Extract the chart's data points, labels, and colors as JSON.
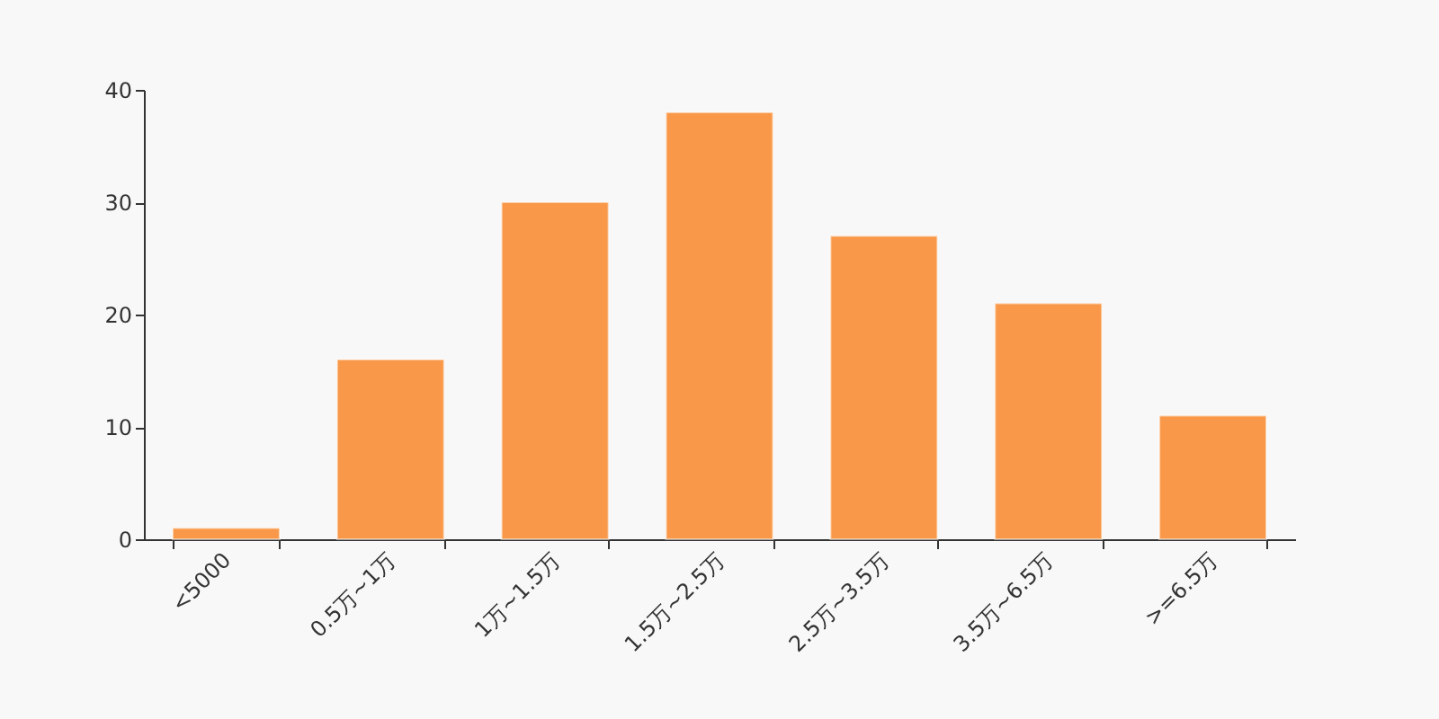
{
  "chart_data": {
    "type": "bar",
    "categories": [
      "<5000",
      "0.5万~1万",
      "1万~1.5万",
      "1.5万~2.5万",
      "2.5万~3.5万",
      "3.5万~6.5万",
      ">=6.5万"
    ],
    "values": [
      1,
      16,
      30,
      38,
      27,
      21,
      11
    ],
    "color": "#f89848",
    "ylim": [
      0,
      40
    ],
    "yticks": [
      0,
      10,
      20,
      30,
      40
    ],
    "grid": false
  }
}
